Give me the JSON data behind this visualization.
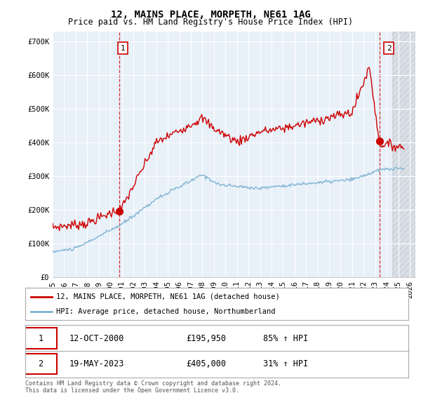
{
  "title": "12, MAINS PLACE, MORPETH, NE61 1AG",
  "subtitle": "Price paid vs. HM Land Registry's House Price Index (HPI)",
  "ylabel_ticks": [
    "£0",
    "£100K",
    "£200K",
    "£300K",
    "£400K",
    "£500K",
    "£600K",
    "£700K"
  ],
  "ytick_values": [
    0,
    100000,
    200000,
    300000,
    400000,
    500000,
    600000,
    700000
  ],
  "ylim": [
    0,
    730000
  ],
  "xlim_start": 1995,
  "xlim_end": 2026.5,
  "sale1_year": 2000.79,
  "sale1_price": 195950,
  "sale2_year": 2023.38,
  "sale2_price": 405000,
  "line_color_red": "#cc0000",
  "line_color_blue": "#7fb3d3",
  "bg_color": "#ffffff",
  "chart_bg_color": "#e8f0f8",
  "grid_color": "#ffffff",
  "legend_line1": "12, MAINS PLACE, MORPETH, NE61 1AG (detached house)",
  "legend_line2": "HPI: Average price, detached house, Northumberland",
  "table_row1": [
    "1",
    "12-OCT-2000",
    "£195,950",
    "85% ↑ HPI"
  ],
  "table_row2": [
    "2",
    "19-MAY-2023",
    "£405,000",
    "31% ↑ HPI"
  ],
  "footnote": "Contains HM Land Registry data © Crown copyright and database right 2024.\nThis data is licensed under the Open Government Licence v3.0.",
  "title_fontsize": 10,
  "subtitle_fontsize": 8.5,
  "tick_fontsize": 7.5
}
